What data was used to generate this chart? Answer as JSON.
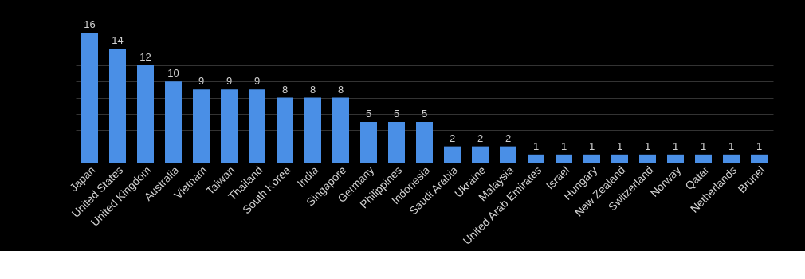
{
  "chart_data": {
    "type": "bar",
    "categories": [
      "Japan",
      "United States",
      "United Kingdom",
      "Australia",
      "Vietnam",
      "Taiwan",
      "Thailand",
      "South Korea",
      "India",
      "Singapore",
      "Germany",
      "Philippines",
      "Indonesia",
      "Saudi Arabia",
      "Ukraine",
      "Malaysia",
      "United Arab Emirates",
      "Israel",
      "Hungary",
      "New Zealand",
      "Switzerland",
      "Norway",
      "Qatar",
      "Netherlands",
      "Brunei"
    ],
    "series": [
      {
        "color": "#4a8fe6",
        "values": [
          16,
          14,
          12,
          10,
          9,
          9,
          9,
          8,
          8,
          8,
          5,
          5,
          5,
          2,
          2,
          2,
          1,
          1,
          1,
          1,
          1,
          1,
          1,
          1,
          1
        ]
      }
    ],
    "grid": "y",
    "tick_labels": "x",
    "data_labels": true
  }
}
